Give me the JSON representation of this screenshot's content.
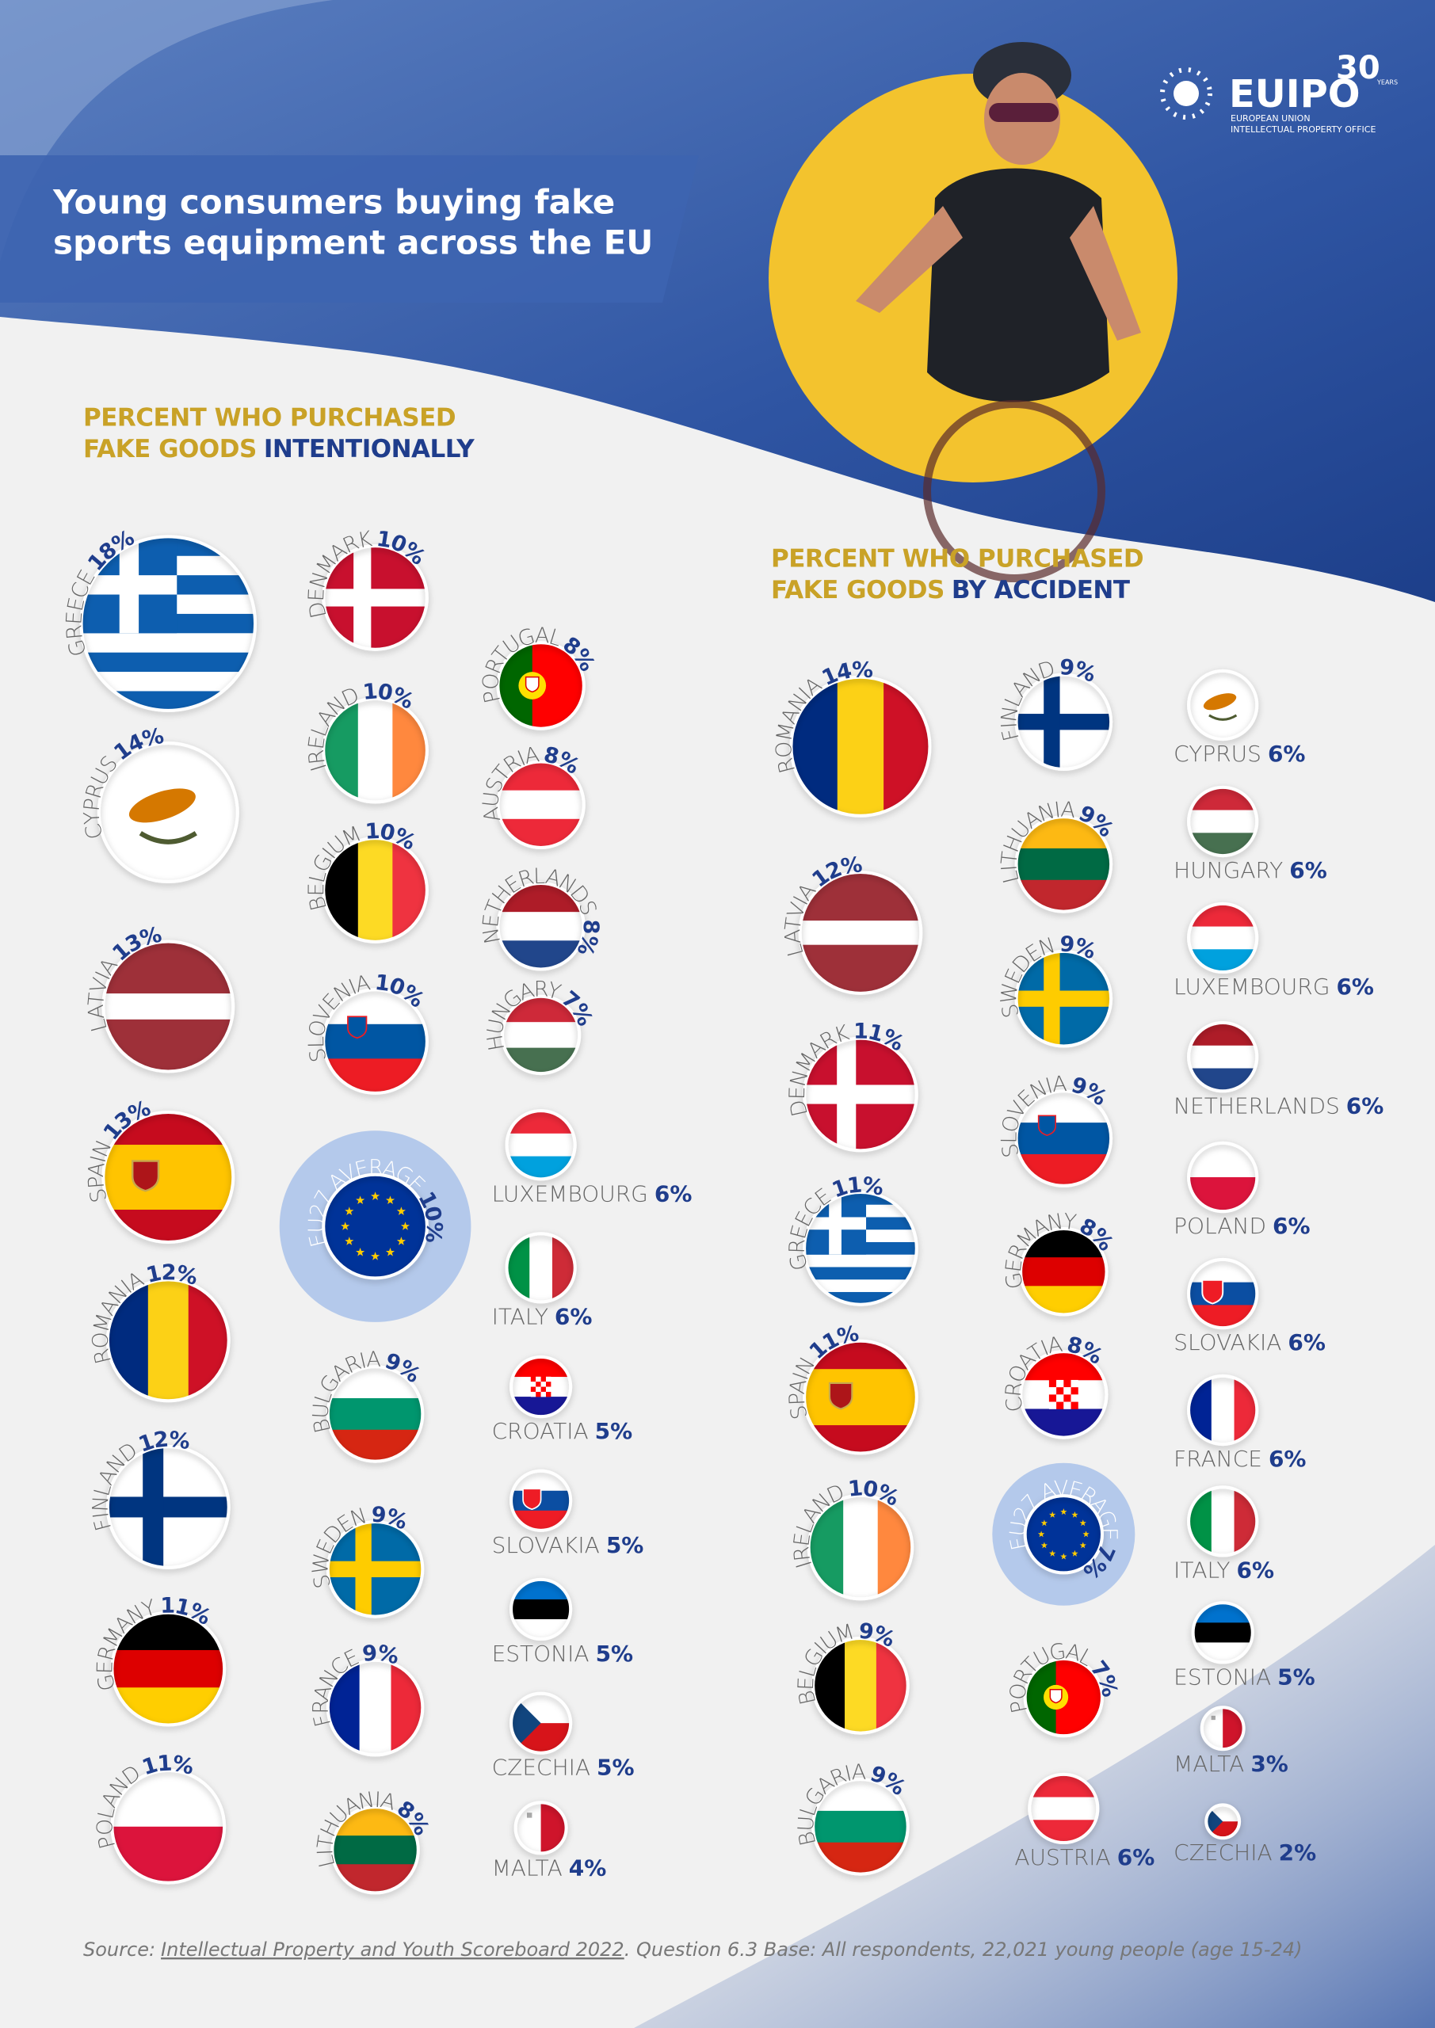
{
  "header": {
    "title_lines": [
      "Young consumers buying fake",
      "sports equipment across the EU"
    ],
    "logo": {
      "name": "EUIPO",
      "anniversary": "30",
      "anniversary_unit": "YEARS",
      "line1": "EUROPEAN UNION",
      "line2": "INTELLECTUAL PROPERTY OFFICE"
    }
  },
  "sections": [
    {
      "heading": {
        "line1": "PERCENT WHO PURCHASED",
        "line2_gold": "FAKE GOODS",
        "line2_blue": "INTENTIONALLY"
      },
      "columns": [
        [
          {
            "name": "GREECE",
            "value": 18,
            "label": "18%"
          },
          {
            "name": "CYPRUS",
            "value": 14,
            "label": "14%"
          },
          {
            "name": "LATVIA",
            "value": 13,
            "label": "13%"
          },
          {
            "name": "SPAIN",
            "value": 13,
            "label": "13%"
          },
          {
            "name": "ROMANIA",
            "value": 12,
            "label": "12%"
          },
          {
            "name": "FINLAND",
            "value": 12,
            "label": "12%"
          },
          {
            "name": "GERMANY",
            "value": 11,
            "label": "11%"
          },
          {
            "name": "POLAND",
            "value": 11,
            "label": "11%"
          }
        ],
        [
          {
            "name": "DENMARK",
            "value": 10,
            "label": "10%"
          },
          {
            "name": "IRELAND",
            "value": 10,
            "label": "10%"
          },
          {
            "name": "BELGIUM",
            "value": 10,
            "label": "10%"
          },
          {
            "name": "SLOVENIA",
            "value": 10,
            "label": "10%"
          },
          {
            "name": "EU27 AVERAGE",
            "value": 10,
            "label": "10%"
          },
          {
            "name": "BULGARIA",
            "value": 9,
            "label": "9%"
          },
          {
            "name": "SWEDEN",
            "value": 9,
            "label": "9%"
          },
          {
            "name": "FRANCE",
            "value": 9,
            "label": "9%"
          },
          {
            "name": "LITHUANIA",
            "value": 8,
            "label": "8%"
          }
        ],
        [
          {
            "name": "PORTUGAL",
            "value": 8,
            "label": "8%"
          },
          {
            "name": "AUSTRIA",
            "value": 8,
            "label": "8%"
          },
          {
            "name": "NETHERLANDS",
            "value": 8,
            "label": "8%"
          },
          {
            "name": "HUNGARY",
            "value": 7,
            "label": "7%"
          },
          {
            "name": "LUXEMBOURG",
            "value": 6,
            "label": "6%"
          },
          {
            "name": "ITALY",
            "value": 6,
            "label": "6%"
          },
          {
            "name": "CROATIA",
            "value": 5,
            "label": "5%"
          },
          {
            "name": "SLOVAKIA",
            "value": 5,
            "label": "5%"
          },
          {
            "name": "ESTONIA",
            "value": 5,
            "label": "5%"
          },
          {
            "name": "CZECHIA",
            "value": 5,
            "label": "5%"
          },
          {
            "name": "MALTA",
            "value": 4,
            "label": "4%"
          }
        ]
      ]
    },
    {
      "heading": {
        "line1": "PERCENT WHO PURCHASED",
        "line2_gold": "FAKE GOODS",
        "line2_blue": "BY ACCIDENT"
      },
      "columns": [
        [
          {
            "name": "ROMANIA",
            "value": 14,
            "label": "14%"
          },
          {
            "name": "LATVIA",
            "value": 12,
            "label": "12%"
          },
          {
            "name": "DENMARK",
            "value": 11,
            "label": "11%"
          },
          {
            "name": "GREECE",
            "value": 11,
            "label": "11%"
          },
          {
            "name": "SPAIN",
            "value": 11,
            "label": "11%"
          },
          {
            "name": "IRELAND",
            "value": 10,
            "label": "10%"
          },
          {
            "name": "BELGIUM",
            "value": 9,
            "label": "9%"
          },
          {
            "name": "BULGARIA",
            "value": 9,
            "label": "9%"
          }
        ],
        [
          {
            "name": "FINLAND",
            "value": 9,
            "label": "9%"
          },
          {
            "name": "LITHUANIA",
            "value": 9,
            "label": "9%"
          },
          {
            "name": "SWEDEN",
            "value": 9,
            "label": "9%"
          },
          {
            "name": "SLOVENIA",
            "value": 9,
            "label": "9%"
          },
          {
            "name": "GERMANY",
            "value": 8,
            "label": "8%"
          },
          {
            "name": "CROATIA",
            "value": 8,
            "label": "8%"
          },
          {
            "name": "EU27 AVERAGE",
            "value": 7,
            "label": "7%"
          },
          {
            "name": "PORTUGAL",
            "value": 7,
            "label": "7%"
          },
          {
            "name": "AUSTRIA",
            "value": 6,
            "label": "6%"
          }
        ],
        [
          {
            "name": "CYPRUS",
            "value": 6,
            "label": "6%"
          },
          {
            "name": "HUNGARY",
            "value": 6,
            "label": "6%"
          },
          {
            "name": "LUXEMBOURG",
            "value": 6,
            "label": "6%"
          },
          {
            "name": "NETHERLANDS",
            "value": 6,
            "label": "6%"
          },
          {
            "name": "POLAND",
            "value": 6,
            "label": "6%"
          },
          {
            "name": "SLOVAKIA",
            "value": 6,
            "label": "6%"
          },
          {
            "name": "FRANCE",
            "value": 6,
            "label": "6%"
          },
          {
            "name": "ITALY",
            "value": 6,
            "label": "6%"
          },
          {
            "name": "ESTONIA",
            "value": 5,
            "label": "5%"
          },
          {
            "name": "MALTA",
            "value": 3,
            "label": "3%"
          },
          {
            "name": "CZECHIA",
            "value": 2,
            "label": "2%"
          }
        ]
      ]
    }
  ],
  "footer": {
    "prefix": "Source:",
    "link": "Intellectual Property and Youth Scoreboard 2022",
    "rest": ". Question 6.3 Base: All respondents, 22,021 young people (age 15-24)"
  }
}
